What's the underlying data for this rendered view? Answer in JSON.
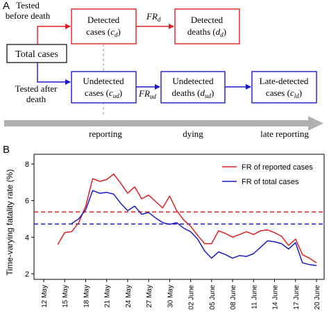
{
  "panelA": {
    "label": "A",
    "left_top_label": [
      "Tested",
      "before death"
    ],
    "total_cases": "Total cases",
    "left_bottom_label": [
      "Tested after",
      "death"
    ],
    "detected_cases": [
      "Detected",
      "cases (",
      "c",
      "d",
      ")"
    ],
    "detected_deaths": [
      "Detected",
      "deaths (",
      "d",
      "d",
      ")"
    ],
    "undetected_cases": [
      "Undetected",
      "cases (",
      "c",
      "ud",
      ")"
    ],
    "undetected_deaths": [
      "Undetected",
      "deaths (",
      "d",
      "ud",
      ")"
    ],
    "late_detected": [
      "Late-detected",
      "cases (",
      "c",
      "ld",
      ")"
    ],
    "fr_d": [
      "FR",
      "d"
    ],
    "fr_ud": [
      "FR",
      "ud"
    ],
    "timeline": {
      "reporting": "reporting",
      "dying": "dying",
      "late_reporting": "late reporting"
    },
    "colors": {
      "detected": "#e02020",
      "undetected": "#1a1ac8",
      "arrow": "#b0b0b0"
    }
  },
  "panelB": {
    "label": "B",
    "chart_data": {
      "type": "line",
      "ylabel": "Time-varying fatality rate (%)",
      "xlabel": "",
      "ylim": [
        2,
        8
      ],
      "yticks": [
        2,
        4,
        6,
        8
      ],
      "xlim": [
        0,
        39
      ],
      "xticks": [
        {
          "x": 0,
          "label": "12 May"
        },
        {
          "x": 3,
          "label": "15 May"
        },
        {
          "x": 6,
          "label": "18 May"
        },
        {
          "x": 9,
          "label": "21 May"
        },
        {
          "x": 12,
          "label": "24 May"
        },
        {
          "x": 15,
          "label": "27 May"
        },
        {
          "x": 18,
          "label": "30 May"
        },
        {
          "x": 21,
          "label": "02 June"
        },
        {
          "x": 24,
          "label": "05 June"
        },
        {
          "x": 27,
          "label": "08 June"
        },
        {
          "x": 30,
          "label": "11 June"
        },
        {
          "x": 33,
          "label": "14 June"
        },
        {
          "x": 36,
          "label": "17 June"
        },
        {
          "x": 39,
          "label": "20 June"
        }
      ],
      "legend_position": "top-right",
      "series": [
        {
          "name": "FR of reported cases",
          "color": "#e02020",
          "x": [
            2,
            3,
            4,
            5,
            6,
            7,
            8,
            9,
            10,
            11,
            12,
            13,
            14,
            15,
            16,
            17,
            18,
            19,
            20,
            21,
            22,
            23,
            24,
            25,
            26,
            27,
            28,
            29,
            30,
            31,
            32,
            33,
            34,
            35,
            36,
            37,
            38,
            39
          ],
          "y": [
            3.6,
            4.25,
            4.3,
            4.8,
            5.7,
            7.2,
            7.05,
            7.15,
            7.45,
            6.95,
            6.4,
            6.75,
            6.1,
            6.3,
            5.95,
            5.6,
            6.25,
            5.45,
            4.95,
            4.6,
            4.1,
            3.65,
            3.65,
            4.35,
            4.2,
            4.0,
            4.15,
            4.3,
            4.15,
            4.35,
            4.4,
            4.25,
            4.05,
            3.55,
            3.9,
            3.05,
            2.85,
            2.6
          ]
        },
        {
          "name": "FR of total cases",
          "color": "#1a1ac8",
          "x": [
            4,
            5,
            6,
            7,
            8,
            9,
            10,
            11,
            12,
            13,
            14,
            15,
            16,
            17,
            18,
            19,
            20,
            21,
            22,
            23,
            24,
            25,
            26,
            27,
            28,
            29,
            30,
            31,
            32,
            33,
            34,
            35,
            36,
            37,
            38,
            39
          ],
          "y": [
            4.75,
            5.0,
            5.5,
            6.55,
            6.4,
            6.45,
            6.35,
            5.85,
            5.45,
            5.7,
            5.25,
            5.35,
            5.05,
            4.8,
            4.7,
            4.8,
            4.5,
            4.3,
            3.9,
            3.25,
            2.85,
            3.2,
            3.05,
            2.85,
            3.0,
            2.95,
            3.1,
            3.45,
            3.8,
            3.75,
            3.65,
            3.35,
            3.7,
            2.6,
            2.5,
            2.45
          ]
        }
      ],
      "reference_lines": [
        {
          "y": 5.38,
          "color": "#e02020",
          "style": "dashed"
        },
        {
          "y": 4.72,
          "color": "#1a1ac8",
          "style": "dashed"
        }
      ]
    }
  }
}
